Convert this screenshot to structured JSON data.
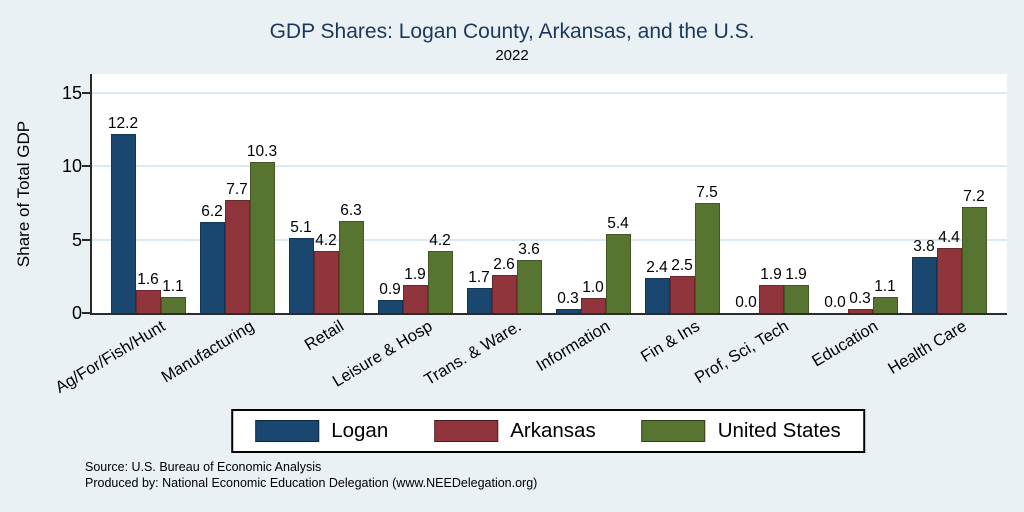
{
  "title": "GDP Shares: Logan County, Arkansas, and the U.S.",
  "subtitle": "2022",
  "source": {
    "line1": "Source: U.S. Bureau of Economic Analysis",
    "line2": "Produced by: National Economic Education Delegation (www.NEEDelegation.org)"
  },
  "colors": {
    "background": "#e9f1f5",
    "plot_background": "#ffffff",
    "gridline": "#dde9f2",
    "axis": "#2b2b2b",
    "title_text": "#1b385c",
    "logan": "#1a476f",
    "arkansas": "#90353b",
    "united_states": "#587431"
  },
  "chart_data": {
    "type": "bar",
    "title": "GDP Shares: Logan County, Arkansas, and the U.S.",
    "subtitle": "2022",
    "xlabel": "",
    "ylabel": "Share of Total GDP",
    "ylim": [
      0,
      16.3
    ],
    "yticks": [
      0,
      5,
      10,
      15
    ],
    "grid": true,
    "legend_position": "bottom",
    "value_labels": true,
    "categories": [
      "Ag/For/Fish/Hunt",
      "Manufacturing",
      "Retail",
      "Leisure & Hosp",
      "Trans. & Ware.",
      "Information",
      "Fin & Ins",
      "Prof, Sci, Tech",
      "Education",
      "Health Care"
    ],
    "series": [
      {
        "name": "Logan",
        "color": "#1a476f",
        "values": [
          12.2,
          6.2,
          5.1,
          0.9,
          1.7,
          0.3,
          2.4,
          0.0,
          0.0,
          3.8
        ]
      },
      {
        "name": "Arkansas",
        "color": "#90353b",
        "values": [
          1.6,
          7.7,
          4.2,
          1.9,
          2.6,
          1.0,
          2.5,
          1.9,
          0.3,
          4.4
        ]
      },
      {
        "name": "United States",
        "color": "#587431",
        "values": [
          1.1,
          10.3,
          6.3,
          4.2,
          3.6,
          5.4,
          7.5,
          1.9,
          1.1,
          7.2
        ]
      }
    ]
  }
}
